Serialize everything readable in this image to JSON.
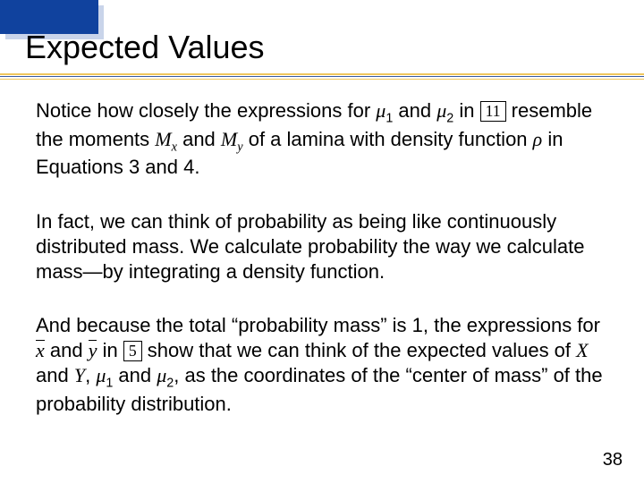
{
  "title": "Expected Values",
  "colors": {
    "header_block": "#10429e",
    "header_shadow": "#c9d4ea",
    "rule_gold": "#f0c75e",
    "rule_blue": "#3a5aa0",
    "background": "#ffffff",
    "text": "#000000"
  },
  "fontsize": {
    "title": 36,
    "body": 22,
    "pagenum": 20
  },
  "refs": {
    "box1": "11",
    "box2": "5"
  },
  "p1": {
    "a": "Notice how closely the expressions for ",
    "mu": "μ",
    "s1": "1",
    "b": " and ",
    "s2": "2",
    "c": " in ",
    "d": " resemble the moments ",
    "Mx_M": "M",
    "Mx_x": "x",
    "e": " and ",
    "My_M": "M",
    "My_y": "y",
    "f": " of a lamina with density function ",
    "rho": "ρ",
    "g": " in Equations 3 and 4."
  },
  "p2": "In fact, we can think of probability as being like continuously distributed mass. We calculate probability the way we calculate mass—by integrating a density function.",
  "p3": {
    "a": "And because the total “probability mass” is 1, the expressions for ",
    "xbar": "x",
    "b": " and ",
    "ybar": "y",
    "c": " in ",
    "d": " show that we can think of the expected values of ",
    "X": "X",
    "e": " and ",
    "Y": "Y",
    "f": ", ",
    "mu": "μ",
    "s1": "1",
    "g": " and ",
    "s2": "2",
    "h": ", as the coordinates of the “center of mass” of the probability distribution."
  },
  "page": "38"
}
